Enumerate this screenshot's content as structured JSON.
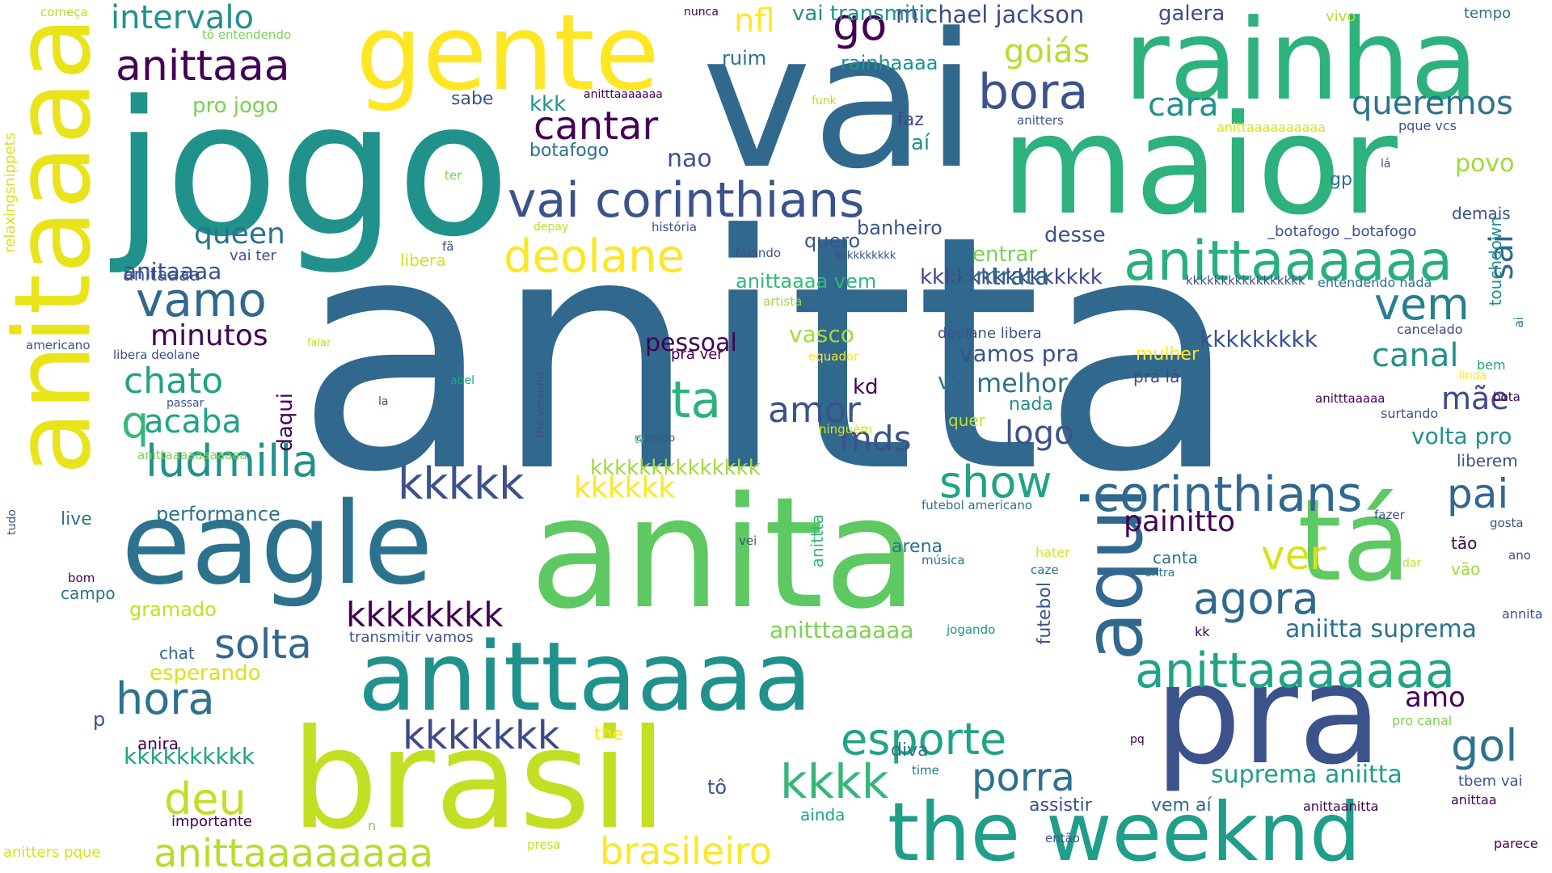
{
  "words": [
    {
      "text": "anitta",
      "color": "#31688e"
    },
    {
      "text": "vai",
      "color": "#31688e"
    },
    {
      "text": "jogo",
      "color": "#21918c"
    },
    {
      "text": "maior",
      "color": "#2db27d"
    },
    {
      "text": "rainha",
      "color": "#2db27d"
    },
    {
      "text": "gente",
      "color": "#fde725"
    },
    {
      "text": "anitaaaa",
      "color": "#e8e419"
    },
    {
      "text": "anita",
      "color": "#5ec962"
    },
    {
      "text": "brasil",
      "color": "#c2df23"
    },
    {
      "text": "pra",
      "color": "#3b528b"
    },
    {
      "text": "eagle",
      "color": "#2c728e"
    },
    {
      "text": "anittaaaa",
      "color": "#21918c"
    },
    {
      "text": "the weeknd",
      "color": "#1f9e89"
    },
    {
      "text": "tá",
      "color": "#5ec962"
    },
    {
      "text": "aqui",
      "color": "#31688e"
    },
    {
      "text": "vai corinthians",
      "color": "#3b528b"
    },
    {
      "text": "anittaaaaaa",
      "color": "#28ae80"
    },
    {
      "text": "anittaaaaaaa",
      "color": "#20a386"
    },
    {
      "text": "corinthians",
      "color": "#31688e"
    },
    {
      "text": "anittaaaaaaaa",
      "color": "#b5de2b"
    },
    {
      "text": "bora",
      "color": "#3b528b"
    },
    {
      "text": "deolane",
      "color": "#fde725"
    },
    {
      "text": "anittaaa",
      "color": "#440154"
    },
    {
      "text": "go",
      "color": "#440154"
    },
    {
      "text": "vamo",
      "color": "#31688e"
    },
    {
      "text": "kkkkk",
      "color": "#3b528b"
    },
    {
      "text": "ludmilla",
      "color": "#21918c"
    },
    {
      "text": "show",
      "color": "#20a386"
    },
    {
      "text": "esporte",
      "color": "#20a386"
    },
    {
      "text": "brasileiro",
      "color": "#fde725"
    },
    {
      "text": "agora",
      "color": "#31688e"
    },
    {
      "text": "hora",
      "color": "#2c728e"
    },
    {
      "text": "solta",
      "color": "#31688e"
    },
    {
      "text": "vem",
      "color": "#277f8e"
    },
    {
      "text": "cantar",
      "color": "#440154"
    },
    {
      "text": "porra",
      "color": "#2c728e"
    },
    {
      "text": "kkkk",
      "color": "#35b779"
    },
    {
      "text": "deu",
      "color": "#c2df23"
    },
    {
      "text": "gol",
      "color": "#2c728e"
    },
    {
      "text": "ver",
      "color": "#d8e219"
    },
    {
      "text": "ta",
      "color": "#2db27d"
    },
    {
      "text": "pai",
      "color": "#31688e"
    },
    {
      "text": "queremos",
      "color": "#2c728e"
    },
    {
      "text": "kkkkkkk",
      "color": "#3e4a89"
    },
    {
      "text": "kkkkkkkk",
      "color": "#440154"
    },
    {
      "text": "acaba",
      "color": "#20a386"
    },
    {
      "text": "chato",
      "color": "#20a386"
    },
    {
      "text": "amor",
      "color": "#3b528b"
    },
    {
      "text": "mds",
      "color": "#3b528b"
    },
    {
      "text": "q",
      "color": "#35b779"
    },
    {
      "text": "cara",
      "color": "#21918c"
    },
    {
      "text": "intervalo",
      "color": "#21918c"
    },
    {
      "text": "nfl",
      "color": "#fde725"
    },
    {
      "text": "goiás",
      "color": "#b5de2b"
    },
    {
      "text": "queen",
      "color": "#2c728e"
    },
    {
      "text": "minutos",
      "color": "#440154"
    },
    {
      "text": "canal",
      "color": "#21918c"
    },
    {
      "text": "mãe",
      "color": "#3e4a89"
    },
    {
      "text": "logo",
      "color": "#3b528b"
    },
    {
      "text": "sai",
      "color": "#31688e"
    },
    {
      "text": "painitto",
      "color": "#440154"
    },
    {
      "text": "kkkkkk",
      "color": "#fde725"
    },
    {
      "text": "amo",
      "color": "#440154"
    },
    {
      "text": "michael jackson",
      "color": "#3e4a89"
    },
    {
      "text": "vai transmitir",
      "color": "#21918c"
    },
    {
      "text": "galera",
      "color": "#3e4a89"
    },
    {
      "text": "anittaaaa vem",
      "color": "#35b779"
    },
    {
      "text": "kkkkkkkkkkkkkkk",
      "color": "#3e4a89"
    },
    {
      "text": "aniitta suprema",
      "color": "#2c728e"
    },
    {
      "text": "suprema aniitta",
      "color": "#1f9e89"
    },
    {
      "text": "vamos pra",
      "color": "#3b528b"
    },
    {
      "text": "melhor",
      "color": "#2c728e"
    },
    {
      "text": "pessoal",
      "color": "#440154"
    },
    {
      "text": "contrata",
      "color": "#31688e"
    },
    {
      "text": "volta pro",
      "color": "#21918c"
    },
    {
      "text": "povo",
      "color": "#a0da39"
    },
    {
      "text": "kkkkkkkkk",
      "color": "#3b528b"
    },
    {
      "text": "anitttaaaaaa",
      "color": "#7ad151"
    },
    {
      "text": "anitaaaa",
      "color": "#3b528b"
    },
    {
      "text": "kkkkkkkkkk",
      "color": "#20a386"
    },
    {
      "text": "kkkkkkkkkkkkkk",
      "color": "#a0da39"
    },
    {
      "text": "performance",
      "color": "#2c728e"
    },
    {
      "text": "esperando",
      "color": "#d8e219"
    },
    {
      "text": "gramado",
      "color": "#c2df23"
    },
    {
      "text": "pro jogo",
      "color": "#7ad151"
    },
    {
      "text": "botafogo",
      "color": "#2c728e"
    },
    {
      "text": "nao",
      "color": "#3b528b"
    },
    {
      "text": "kkk",
      "color": "#21918c"
    },
    {
      "text": "ruim",
      "color": "#2c728e"
    },
    {
      "text": "sabe",
      "color": "#3b528b"
    },
    {
      "text": "rainhaaaa",
      "color": "#21918c"
    },
    {
      "text": "faz",
      "color": "#3e4a89"
    },
    {
      "text": "aí",
      "color": "#21918c"
    },
    {
      "text": "banheiro",
      "color": "#3b528b"
    },
    {
      "text": "quero",
      "color": "#3b528b"
    },
    {
      "text": "desse",
      "color": "#3b528b"
    },
    {
      "text": "entrar",
      "color": "#7ad151"
    },
    {
      "text": "vasco",
      "color": "#a0da39"
    },
    {
      "text": "kd",
      "color": "#440154"
    },
    {
      "text": "vc",
      "color": "#2c728e"
    },
    {
      "text": "nada",
      "color": "#21918c"
    },
    {
      "text": "pra lá",
      "color": "#3e4a89"
    },
    {
      "text": "mulher",
      "color": "#fde725"
    },
    {
      "text": "quer",
      "color": "#c2df23"
    },
    {
      "text": "daqui",
      "color": "#440154"
    },
    {
      "text": "libera",
      "color": "#d8e219"
    },
    {
      "text": "vai ter",
      "color": "#3b528b"
    },
    {
      "text": "anitaaaa ",
      "color": "#3b528b"
    },
    {
      "text": "live",
      "color": "#2c728e"
    },
    {
      "text": "campo",
      "color": "#2c728e"
    },
    {
      "text": "chat",
      "color": "#31688e"
    },
    {
      "text": "anira",
      "color": "#440154"
    },
    {
      "text": "p",
      "color": "#3b528b"
    },
    {
      "text": "tô",
      "color": "#3b528b"
    },
    {
      "text": "importante",
      "color": "#440154"
    },
    {
      "text": "anitters pque",
      "color": "#d8e219"
    },
    {
      "text": "the",
      "color": "#fde725"
    },
    {
      "text": "diva",
      "color": "#2c728e"
    },
    {
      "text": "assistir",
      "color": "#3b528b"
    },
    {
      "text": "vem aí",
      "color": "#31688e"
    },
    {
      "text": "ainda",
      "color": "#20a386"
    },
    {
      "text": "futebol",
      "color": "#3b528b"
    },
    {
      "text": "arena",
      "color": "#2c728e"
    },
    {
      "text": "canta",
      "color": "#2c728e"
    },
    {
      "text": "tbem vai",
      "color": "#3b528b"
    },
    {
      "text": "tão",
      "color": "#440154"
    },
    {
      "text": "vão",
      "color": "#a0da39"
    },
    {
      "text": "liberem",
      "color": "#3b528b"
    },
    {
      "text": "demais",
      "color": "#3b528b"
    },
    {
      "text": "gp",
      "color": "#2c728e"
    },
    {
      "text": "touchdown",
      "color": "#21918c"
    },
    {
      "text": "tempo",
      "color": "#2c728e"
    },
    {
      "text": "vivo",
      "color": "#b5de2b"
    },
    {
      "text": "pque vcs",
      "color": "#3b528b"
    },
    {
      "text": "anittaaaaaaaaaa",
      "color": "#d8e219"
    },
    {
      "text": "_botafogo _botafogo",
      "color": "#3b528b"
    },
    {
      "text": "entendendo nada",
      "color": "#2c728e"
    },
    {
      "text": "kkkkkkkkkkkkkkkkk",
      "color": "#3b528b"
    },
    {
      "text": "cancelado",
      "color": "#3e4a89"
    },
    {
      "text": "bem",
      "color": "#20a386"
    },
    {
      "text": "linda",
      "color": "#fde725"
    },
    {
      "text": "bota",
      "color": "#440154"
    },
    {
      "text": "surtando",
      "color": "#3b528b"
    },
    {
      "text": "anitttaaaaa",
      "color": "#440154"
    },
    {
      "text": "fazer",
      "color": "#3b528b"
    },
    {
      "text": "gosta",
      "color": "#3b528b"
    },
    {
      "text": "ano",
      "color": "#3b528b"
    },
    {
      "text": "dar",
      "color": "#c2df23"
    },
    {
      "text": "annita",
      "color": "#3b528b"
    },
    {
      "text": "kk",
      "color": "#440154"
    },
    {
      "text": "anittaa",
      "color": "#440154"
    },
    {
      "text": "parece",
      "color": "#440154"
    },
    {
      "text": "anittaanitta",
      "color": "#440154"
    },
    {
      "text": "pro canal",
      "color": "#7ad151"
    },
    {
      "text": "entra",
      "color": "#2c728e"
    },
    {
      "text": "hater",
      "color": "#d8e219"
    },
    {
      "text": "caze",
      "color": "#2c728e"
    },
    {
      "text": "então",
      "color": "#3b528b"
    },
    {
      "text": "presa",
      "color": "#c2df23"
    },
    {
      "text": "n",
      "color": "#7ad151"
    },
    {
      "text": "time",
      "color": "#2c728e"
    },
    {
      "text": "pq",
      "color": "#440154"
    },
    {
      "text": "jogando",
      "color": "#21918c"
    },
    {
      "text": "transmitir vamos",
      "color": "#3b528b"
    },
    {
      "text": "música",
      "color": "#2c728e"
    },
    {
      "text": "anittta",
      "color": "#35b779"
    },
    {
      "text": "futebol americano",
      "color": "#2c728e"
    },
    {
      "text": "vei",
      "color": "#3b528b"
    },
    {
      "text": "ninguém",
      "color": "#d8e219"
    },
    {
      "text": "caralho",
      "color": "#3b528b"
    },
    {
      "text": "tv",
      "color": "#35b779"
    },
    {
      "text": "the weeknd ",
      "color": "#3b528b"
    },
    {
      "text": "la",
      "color": "#3b528b"
    },
    {
      "text": "abel",
      "color": "#20a386"
    },
    {
      "text": "passar",
      "color": "#3b528b"
    },
    {
      "text": "falar",
      "color": "#c2df23"
    },
    {
      "text": "libera deolane",
      "color": "#3e4a89"
    },
    {
      "text": "americano",
      "color": "#3b528b"
    },
    {
      "text": "relaxingsnippets",
      "color": "#d8e219"
    },
    {
      "text": "tudo",
      "color": "#3b528b"
    },
    {
      "text": "bom",
      "color": "#440154"
    },
    {
      "text": "anittaaaaaaaaaaa",
      "color": "#7ad151"
    },
    {
      "text": "ter",
      "color": "#7ad151"
    },
    {
      "text": "começa",
      "color": "#b5de2b"
    },
    {
      "text": "tô entendendo",
      "color": "#7ad151"
    },
    {
      "text": "nunca",
      "color": "#440154"
    },
    {
      "text": "anitttaaaaaaa",
      "color": "#440154"
    },
    {
      "text": "funk",
      "color": "#b5de2b"
    },
    {
      "text": "anitters",
      "color": "#3b528b"
    },
    {
      "text": "lá",
      "color": "#3b528b"
    },
    {
      "text": "fã",
      "color": "#3b528b"
    },
    {
      "text": "depay",
      "color": "#c2df23"
    },
    {
      "text": "história",
      "color": "#3b528b"
    },
    {
      "text": "falando",
      "color": "#3b528b"
    },
    {
      "text": "kkkkkkkkkk ",
      "color": "#3b528b"
    },
    {
      "text": "artista",
      "color": "#a0da39"
    },
    {
      "text": "to",
      "color": "#2c728e"
    },
    {
      "text": "pra ver",
      "color": "#440154"
    },
    {
      "text": "equador",
      "color": "#fde725"
    },
    {
      "text": "deolane libera",
      "color": "#3b528b"
    },
    {
      "text": "ai",
      "color": "#2c728e"
    }
  ]
}
